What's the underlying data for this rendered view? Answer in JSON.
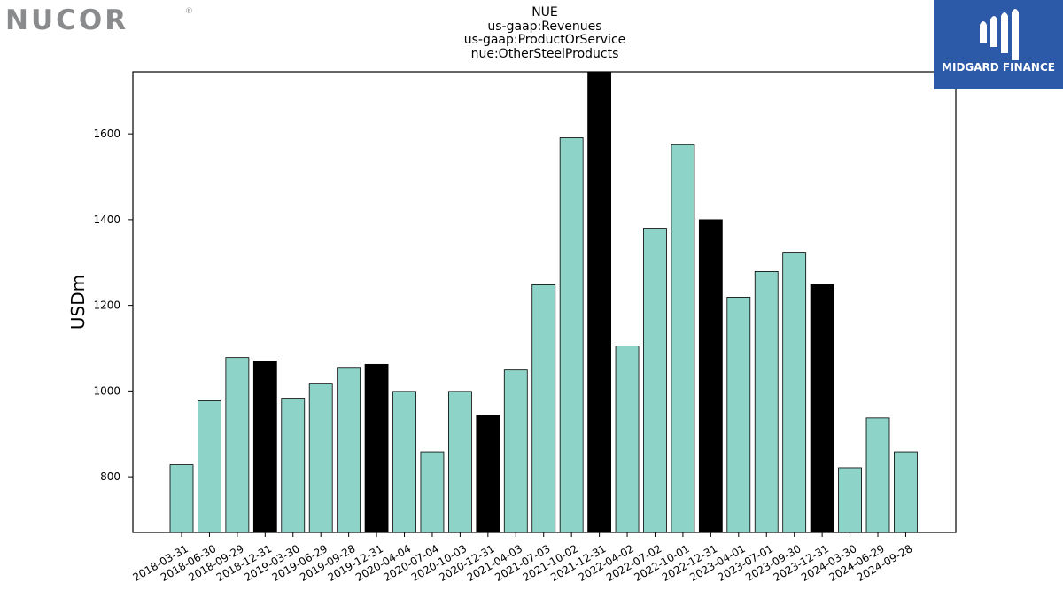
{
  "brand": {
    "logo_text": "NUCOR",
    "reg_mark": "®"
  },
  "partner": {
    "name": "MIDGARD FINANCE",
    "color": "#2d5aa8"
  },
  "titles": [
    "NUE",
    "us-gaap:Revenues",
    "us-gaap:ProductOrService",
    "nue:OtherSteelProducts"
  ],
  "chart_data": {
    "type": "bar",
    "ylabel": "USDm",
    "xlabel": "",
    "ylim": [
      670,
      1745
    ],
    "yticks": [
      800,
      1000,
      1200,
      1400,
      1600
    ],
    "grid": false,
    "colors": {
      "quarter": "#8dd3c7",
      "year_end": "#000000"
    },
    "categories": [
      "2018-03-31",
      "2018-06-30",
      "2018-09-29",
      "2018-12-31",
      "2019-03-30",
      "2019-06-29",
      "2019-09-28",
      "2019-12-31",
      "2020-04-04",
      "2020-07-04",
      "2020-10-03",
      "2020-12-31",
      "2021-04-03",
      "2021-07-03",
      "2021-10-02",
      "2021-12-31",
      "2022-04-02",
      "2022-07-02",
      "2022-10-01",
      "2022-12-31",
      "2023-04-01",
      "2023-07-01",
      "2023-09-30",
      "2023-12-31",
      "2024-03-30",
      "2024-06-29",
      "2024-09-28"
    ],
    "values": [
      828,
      977,
      1078,
      1070,
      983,
      1018,
      1055,
      1062,
      999,
      858,
      999,
      944,
      1049,
      1248,
      1591,
      1745,
      1105,
      1380,
      1575,
      1400,
      1219,
      1279,
      1322,
      1248,
      821,
      937,
      858
    ],
    "year_end": [
      false,
      false,
      false,
      true,
      false,
      false,
      false,
      true,
      false,
      false,
      false,
      true,
      false,
      false,
      false,
      true,
      false,
      false,
      false,
      true,
      false,
      false,
      false,
      true,
      false,
      false,
      false
    ]
  }
}
